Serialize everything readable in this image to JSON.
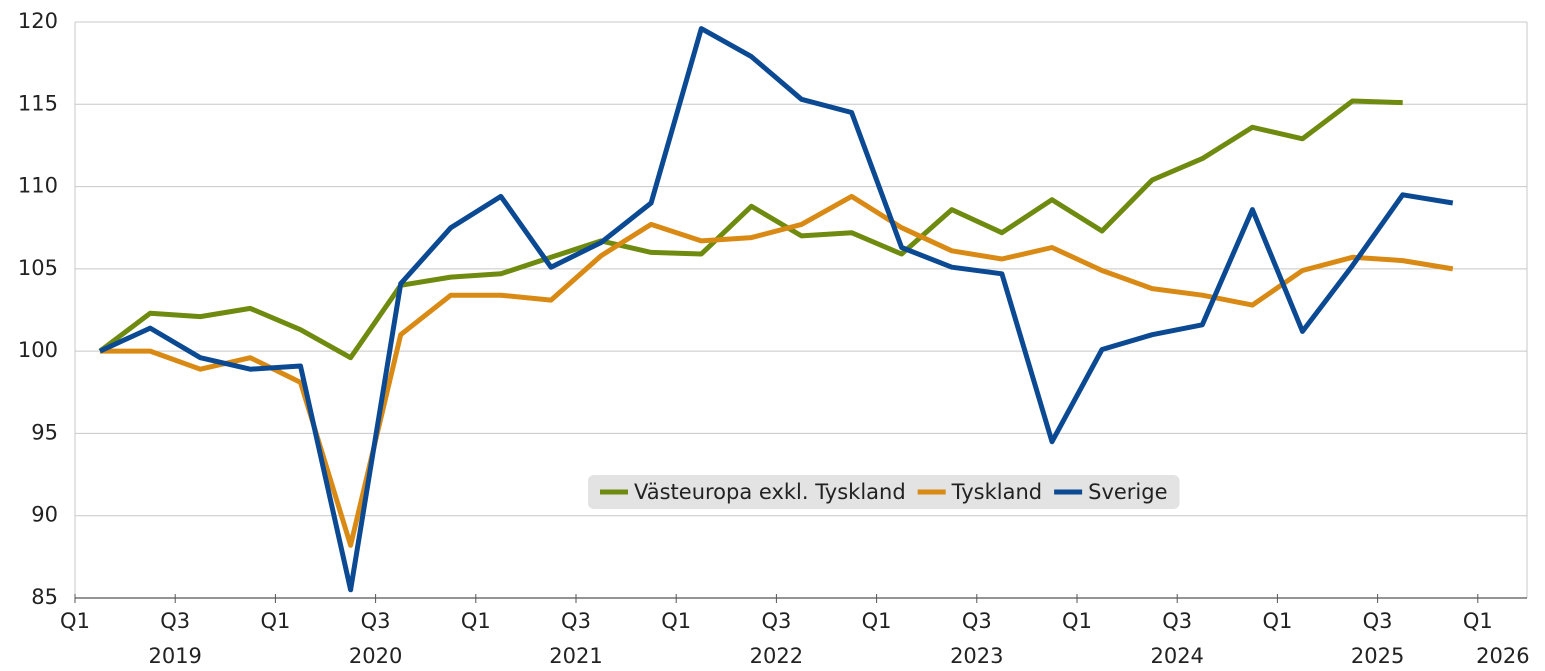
{
  "chart_data": {
    "type": "line",
    "categories": [
      null,
      null,
      null,
      null,
      null,
      null,
      null,
      null,
      null,
      null,
      null,
      null,
      null,
      null,
      null,
      null,
      null,
      null,
      null,
      null,
      null,
      null,
      null,
      null,
      null,
      null,
      null,
      null
    ],
    "series": [
      {
        "name": "Västeuropa exkl. Tyskland",
        "color": "#6e8b0f",
        "values": [
          100,
          102.3,
          102.1,
          102.6,
          101.3,
          99.6,
          104.0,
          104.5,
          104.7,
          105.7,
          106.7,
          106.0,
          105.9,
          108.8,
          107.0,
          107.2,
          105.9,
          108.6,
          107.2,
          109.2,
          107.3,
          110.4,
          111.7,
          113.6,
          112.9,
          115.2,
          115.1,
          null
        ]
      },
      {
        "name": "Tyskland",
        "color": "#d98a14",
        "values": [
          100,
          100,
          98.9,
          99.6,
          98.1,
          88.2,
          101.0,
          103.4,
          103.4,
          103.1,
          105.8,
          107.7,
          106.7,
          106.9,
          107.7,
          109.4,
          107.5,
          106.1,
          105.6,
          106.3,
          104.9,
          103.8,
          103.4,
          102.8,
          104.9,
          105.7,
          105.5,
          105.0
        ]
      },
      {
        "name": "Sverige",
        "color": "#0b4a93",
        "values": [
          100,
          101.4,
          99.6,
          98.9,
          99.1,
          85.5,
          104.1,
          107.5,
          109.4,
          105.1,
          106.6,
          109.0,
          119.6,
          117.9,
          115.3,
          114.5,
          106.3,
          105.1,
          104.7,
          94.5,
          100.1,
          101.0,
          101.6,
          108.6,
          101.2,
          105.2,
          109.5,
          109.0
        ]
      }
    ],
    "ylim": [
      85,
      120
    ],
    "yticks": [
      85,
      90,
      95,
      100,
      105,
      110,
      115,
      120
    ],
    "xticks": [
      {
        "value": 0,
        "label": "Q1"
      },
      {
        "value": 2,
        "label": "Q3"
      },
      {
        "value": 4,
        "label": "Q1"
      },
      {
        "value": 6,
        "label": "Q3"
      },
      {
        "value": 8,
        "label": "Q1"
      },
      {
        "value": 10,
        "label": "Q3"
      },
      {
        "value": 12,
        "label": "Q1"
      },
      {
        "value": 14,
        "label": "Q3"
      },
      {
        "value": 16,
        "label": "Q1"
      },
      {
        "value": 18,
        "label": "Q3"
      },
      {
        "value": 20,
        "label": "Q1"
      },
      {
        "value": 22,
        "label": "Q3"
      },
      {
        "value": 24,
        "label": "Q1"
      },
      {
        "value": 26,
        "label": "Q3"
      },
      {
        "value": 28,
        "label": "Q1"
      }
    ],
    "year_labels": [
      {
        "value": 2,
        "label": "2019"
      },
      {
        "value": 6,
        "label": "2020"
      },
      {
        "value": 10,
        "label": "2021"
      },
      {
        "value": 14,
        "label": "2022"
      },
      {
        "value": 18,
        "label": "2023"
      },
      {
        "value": 22,
        "label": "2024"
      },
      {
        "value": 26,
        "label": "2025"
      },
      {
        "value": 28.5,
        "label": "2026"
      }
    ],
    "grid": true
  }
}
